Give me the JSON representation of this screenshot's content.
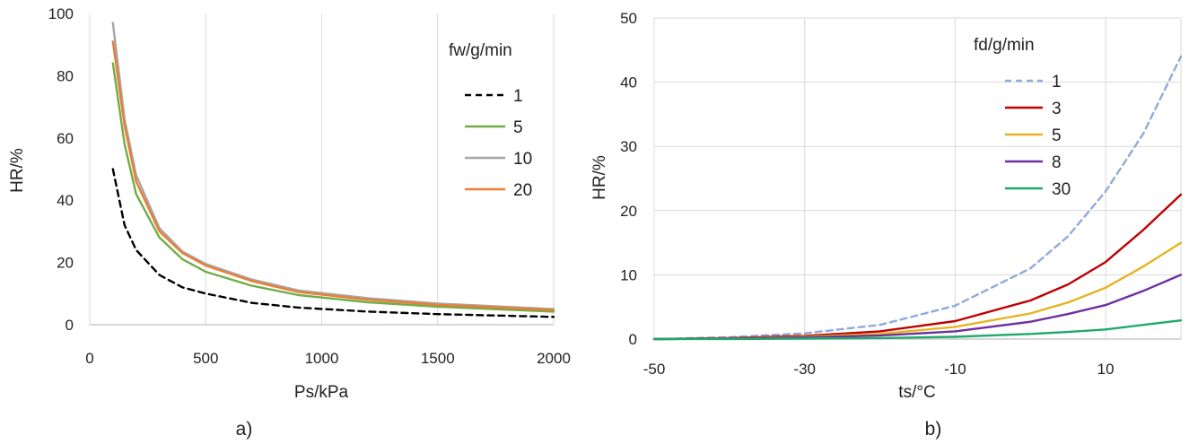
{
  "chart_data": [
    {
      "type": "line",
      "id": "a",
      "panel_label": "a)",
      "xlabel": "Ps/kPa",
      "ylabel": "HR/%",
      "xlim": [
        0,
        2000
      ],
      "ylim": [
        0,
        100
      ],
      "xticks": [
        "0",
        "500",
        "1000",
        "1500",
        "2000"
      ],
      "yticks": [
        "0",
        "20",
        "40",
        "60",
        "80",
        "100"
      ],
      "grid": "vertical",
      "legend_title": "fw/g/min",
      "legend_position": "top-right",
      "series": [
        {
          "name": "1",
          "color": "#000000",
          "dash": "dashed",
          "x": [
            100,
            150,
            200,
            300,
            400,
            500,
            700,
            900,
            1200,
            1500,
            2000
          ],
          "y": [
            50,
            32,
            24,
            16,
            12,
            10,
            7,
            5.5,
            4.2,
            3.4,
            2.5
          ]
        },
        {
          "name": "5",
          "color": "#70AD47",
          "dash": "solid",
          "x": [
            100,
            150,
            200,
            300,
            400,
            500,
            700,
            900,
            1200,
            1500,
            2000
          ],
          "y": [
            84,
            58,
            42,
            28,
            21,
            17,
            12.5,
            9.5,
            7.2,
            5.8,
            4.2
          ]
        },
        {
          "name": "10",
          "color": "#A5A5A5",
          "dash": "solid",
          "x": [
            100,
            150,
            200,
            300,
            400,
            500,
            700,
            900,
            1200,
            1500,
            2000
          ],
          "y": [
            97,
            66,
            48,
            31,
            23.5,
            19.5,
            14.5,
            11,
            8.5,
            6.8,
            5
          ]
        },
        {
          "name": "20",
          "color": "#ED7D31",
          "dash": "solid",
          "x": [
            100,
            150,
            200,
            300,
            400,
            500,
            700,
            900,
            1200,
            1500,
            2000
          ],
          "y": [
            91,
            64,
            46,
            30,
            23,
            19,
            14,
            10.5,
            8,
            6.4,
            4.7
          ]
        }
      ]
    },
    {
      "type": "line",
      "id": "b",
      "panel_label": "b)",
      "xlabel": "ts/°C",
      "ylabel": "HR/%",
      "xlim": [
        -50,
        20
      ],
      "ylim": [
        0,
        50
      ],
      "xticks": [
        "-50",
        "-30",
        "-10",
        "10"
      ],
      "yticks": [
        "0",
        "10",
        "20",
        "30",
        "40",
        "50"
      ],
      "grid": "both",
      "legend_title": "fd/g/min",
      "legend_position": "top-right",
      "series": [
        {
          "name": "1",
          "color": "#8FAADC",
          "dash": "dashed",
          "x": [
            -50,
            -40,
            -30,
            -20,
            -10,
            0,
            5,
            10,
            15,
            20
          ],
          "y": [
            0,
            0.3,
            0.9,
            2.2,
            5.2,
            11,
            16,
            23,
            32,
            44
          ]
        },
        {
          "name": "3",
          "color": "#C00000",
          "dash": "solid",
          "x": [
            -50,
            -40,
            -30,
            -20,
            -10,
            0,
            5,
            10,
            15,
            20
          ],
          "y": [
            0,
            0.15,
            0.5,
            1.2,
            2.8,
            6,
            8.5,
            12,
            17,
            22.5
          ]
        },
        {
          "name": "5",
          "color": "#E6B422",
          "dash": "solid",
          "x": [
            -50,
            -40,
            -30,
            -20,
            -10,
            0,
            5,
            10,
            15,
            20
          ],
          "y": [
            0,
            0.1,
            0.35,
            0.8,
            1.9,
            4,
            5.7,
            8,
            11.3,
            15
          ]
        },
        {
          "name": "8",
          "color": "#7030A0",
          "dash": "solid",
          "x": [
            -50,
            -40,
            -30,
            -20,
            -10,
            0,
            5,
            10,
            15,
            20
          ],
          "y": [
            0,
            0.07,
            0.25,
            0.55,
            1.2,
            2.7,
            3.9,
            5.3,
            7.5,
            10
          ]
        },
        {
          "name": "30",
          "color": "#1FAA6A",
          "dash": "solid",
          "x": [
            -50,
            -40,
            -30,
            -20,
            -10,
            0,
            5,
            10,
            15,
            20
          ],
          "y": [
            0,
            0.02,
            0.07,
            0.15,
            0.35,
            0.8,
            1.1,
            1.5,
            2.2,
            2.9
          ]
        }
      ]
    }
  ]
}
